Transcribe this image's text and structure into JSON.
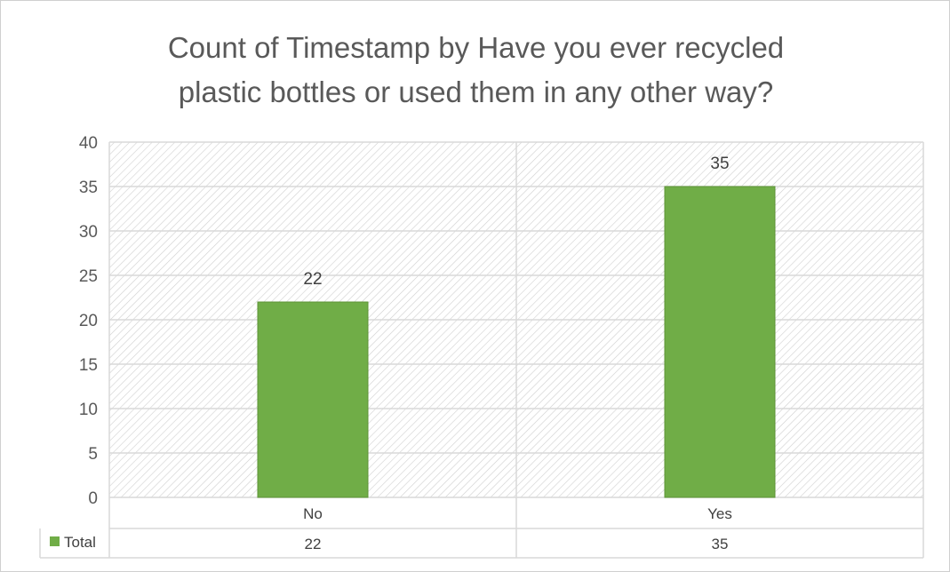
{
  "chart_data": {
    "type": "bar",
    "title": "Count of Timestamp by Have you ever recycled plastic bottles or used them in any other way?",
    "title_lines": [
      "Count of Timestamp by Have you ever recycled",
      "plastic bottles or used them in any other way?"
    ],
    "categories": [
      "No",
      "Yes"
    ],
    "series": [
      {
        "name": "Total",
        "values": [
          22,
          35
        ],
        "color": "#70ad47"
      }
    ],
    "data_labels": [
      "22",
      "35"
    ],
    "ylim": [
      0,
      40
    ],
    "y_ticks": [
      0,
      5,
      10,
      15,
      20,
      25,
      30,
      35,
      40
    ],
    "y_tick_labels": [
      "0",
      "5",
      "10",
      "15",
      "20",
      "25",
      "30",
      "35",
      "40"
    ],
    "grid": true,
    "data_table": {
      "legend_label": "Total",
      "values": [
        "22",
        "35"
      ]
    },
    "colors": {
      "bar": "#70ad47",
      "bar_edge": "#5e9437",
      "gridline": "#d9d9d9",
      "text": "#595959",
      "pattern_line": "#cfcfcf"
    }
  }
}
